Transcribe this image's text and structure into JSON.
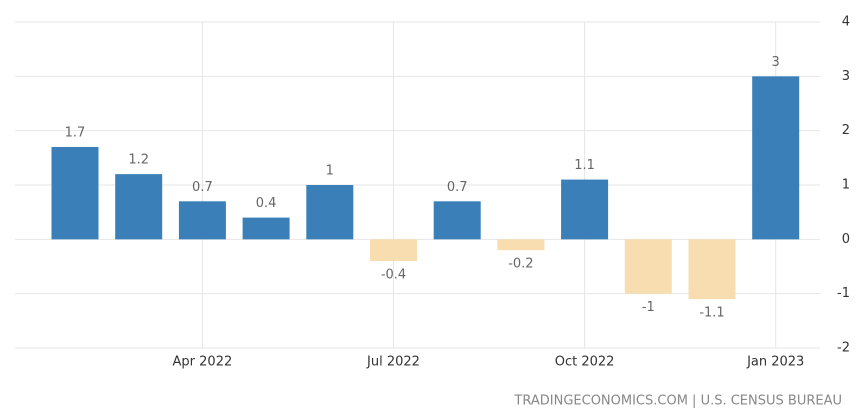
{
  "chart_data": {
    "type": "bar",
    "categories": [
      null,
      null,
      "Apr 2022",
      null,
      null,
      "Jul 2022",
      null,
      null,
      "Oct 2022",
      null,
      null,
      "Jan 2023"
    ],
    "values": [
      1.7,
      1.2,
      0.7,
      0.4,
      1,
      -0.4,
      0.7,
      -0.2,
      1.1,
      -1,
      -1.1,
      3
    ],
    "color": "#3a7fb8",
    "negative_color": "#f7ddb0",
    "ylim": [
      -2,
      4
    ],
    "yticks": [
      -2,
      -1,
      0,
      1,
      2,
      3,
      4
    ],
    "grid": true,
    "source": "TRADINGECONOMICS.COM | U.S. CENSUS BUREAU"
  }
}
